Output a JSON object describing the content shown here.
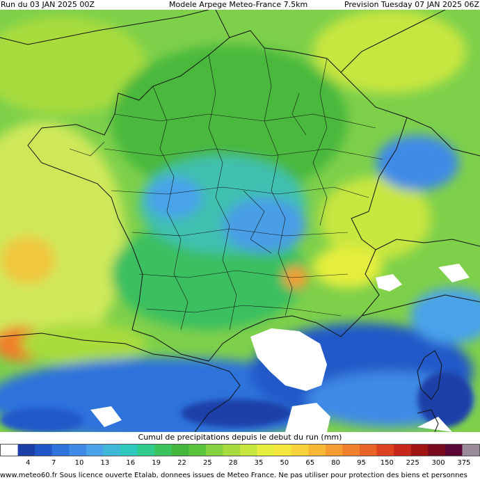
{
  "header": {
    "run": "Run du 03 JAN 2025 00Z",
    "model": "Modele Arpege Meteo-France 7.5km",
    "forecast": "Prevision Tuesday 07 JAN 2025 06Z"
  },
  "legend": {
    "title": "Cumul de precipitations depuis le debut du run (mm)",
    "ticks": [
      "4",
      "7",
      "10",
      "13",
      "16",
      "19",
      "22",
      "25",
      "28",
      "35",
      "50",
      "65",
      "80",
      "95",
      "150",
      "225",
      "300",
      "375"
    ],
    "colors": [
      "#ffffff",
      "#1c3fa8",
      "#2058c8",
      "#2f72dc",
      "#3f8ae6",
      "#4aa2ea",
      "#3fb8d8",
      "#2fc8bc",
      "#2fcc8e",
      "#3bc45e",
      "#43b63c",
      "#5cc43a",
      "#86d23e",
      "#a8dc3e",
      "#c8e640",
      "#e6ee3e",
      "#f4e83e",
      "#f8d23a",
      "#f8b836",
      "#f59c30",
      "#f0802c",
      "#e86426",
      "#dc4220",
      "#c8281a",
      "#a01414",
      "#7a0a1e",
      "#5a0636",
      "#9a8a9a"
    ]
  },
  "footer": {
    "credit": "www.meteo60.fr Sous licence ouverte Etalab, donnees issues de Meteo France. Ne pas utiliser pour protection des biens et personnes"
  },
  "map": {
    "sea_color": "#ffffff",
    "border_color": "#111111"
  }
}
